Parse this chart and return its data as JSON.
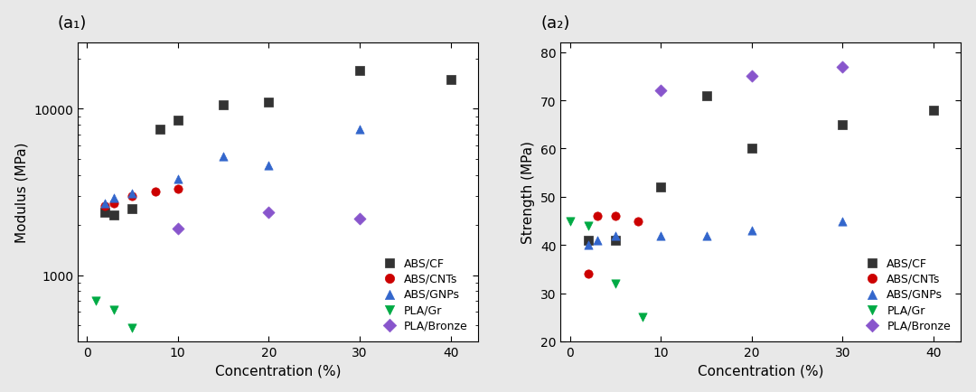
{
  "left_plot": {
    "title": "(a₁)",
    "xlabel": "Concentration (%)",
    "ylabel": "Modulus (MPa)",
    "series": {
      "ABS/CF": {
        "x": [
          2,
          3,
          5,
          8,
          10,
          15,
          20,
          30,
          40
        ],
        "y": [
          2400,
          2300,
          2500,
          7500,
          8500,
          10500,
          11000,
          17000,
          15000
        ],
        "color": "#333333",
        "marker": "s"
      },
      "ABS/CNTs": {
        "x": [
          2,
          3,
          5,
          7.5,
          10
        ],
        "y": [
          2600,
          2700,
          3000,
          3200,
          3300
        ],
        "color": "#cc0000",
        "marker": "o"
      },
      "ABS/GNPs": {
        "x": [
          2,
          3,
          5,
          10,
          15,
          20,
          30
        ],
        "y": [
          2700,
          2900,
          3100,
          3800,
          5200,
          4600,
          7500
        ],
        "color": "#3366cc",
        "marker": "^"
      },
      "PLA/Gr": {
        "x": [
          1,
          3,
          5
        ],
        "y": [
          700,
          620,
          480
        ],
        "color": "#00aa44",
        "marker": "v"
      },
      "PLA/Bronze": {
        "x": [
          10,
          20,
          30
        ],
        "y": [
          1900,
          2400,
          2200
        ],
        "color": "#8855cc",
        "marker": "D"
      }
    },
    "ylim_log": [
      400,
      25000
    ],
    "xlim": [
      -1,
      43
    ]
  },
  "right_plot": {
    "title": "(a₂)",
    "xlabel": "Concentration (%)",
    "ylabel": "Strength (MPa)",
    "series": {
      "ABS/CF": {
        "x": [
          2,
          5,
          10,
          15,
          20,
          30,
          40
        ],
        "y": [
          41,
          41,
          52,
          71,
          60,
          65,
          68
        ],
        "color": "#333333",
        "marker": "s"
      },
      "ABS/CNTs": {
        "x": [
          2,
          3,
          5,
          7.5
        ],
        "y": [
          34,
          46,
          46,
          45
        ],
        "color": "#cc0000",
        "marker": "o"
      },
      "ABS/GNPs": {
        "x": [
          2,
          3,
          5,
          10,
          15,
          20,
          30
        ],
        "y": [
          40,
          41,
          42,
          42,
          42,
          43,
          45
        ],
        "color": "#3366cc",
        "marker": "^"
      },
      "PLA/Gr": {
        "x": [
          0,
          2,
          5,
          8
        ],
        "y": [
          45,
          44,
          32,
          25
        ],
        "color": "#00aa44",
        "marker": "v"
      },
      "PLA/Bronze": {
        "x": [
          10,
          20,
          30
        ],
        "y": [
          72,
          75,
          77
        ],
        "color": "#8855cc",
        "marker": "D"
      }
    },
    "ylim": [
      20,
      82
    ],
    "xlim": [
      -1,
      43
    ],
    "yticks": [
      20,
      30,
      40,
      50,
      60,
      70,
      80
    ]
  },
  "legend_order": [
    "ABS/CF",
    "ABS/CNTs",
    "ABS/GNPs",
    "PLA/Gr",
    "PLA/Bronze"
  ],
  "bg_color": "#e8e8e8"
}
